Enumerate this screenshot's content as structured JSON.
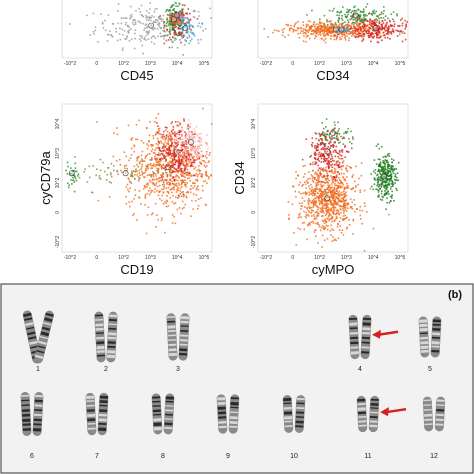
{
  "panel_b_label": "(b)",
  "flow_plots": [
    {
      "id": "cd45",
      "xlabel": "CD45",
      "ylabel": "",
      "x_ticks": [
        "-10^2",
        "0",
        "10^2",
        "10^3",
        "10^4",
        "10^5"
      ],
      "y_ticks": [],
      "populations": [
        {
          "color": "#9a9a9a",
          "cx": 3.0,
          "cy": 2.2,
          "sx": 1.0,
          "sy": 0.8,
          "n": 260
        },
        {
          "color": "#2e8b2e",
          "cx": 3.8,
          "cy": 2.6,
          "sx": 0.18,
          "sy": 0.6,
          "n": 170
        },
        {
          "color": "#d42020",
          "cx": 4.0,
          "cy": 2.4,
          "sx": 0.25,
          "sy": 0.6,
          "n": 90
        },
        {
          "color": "#2aa7d8",
          "cx": 4.2,
          "cy": 2.0,
          "sx": 0.18,
          "sy": 0.5,
          "n": 50
        },
        {
          "color": "#f26a1b",
          "cx": 3.8,
          "cy": 2.7,
          "sx": 0.12,
          "sy": 0.2,
          "n": 30
        },
        {
          "color": "#b03ab0",
          "cx": 3.9,
          "cy": 3.0,
          "sx": 0.1,
          "sy": 0.15,
          "n": 15
        }
      ]
    },
    {
      "id": "cd34-top",
      "xlabel": "CD34",
      "ylabel": "",
      "x_ticks": [
        "-10^2",
        "0",
        "10^2",
        "10^3",
        "10^4",
        "10^5"
      ],
      "y_ticks": [],
      "populations": [
        {
          "color": "#2e8b2e",
          "cx": 3.3,
          "cy": 3.0,
          "sx": 0.6,
          "sy": 0.4,
          "n": 160
        },
        {
          "color": "#f26a1b",
          "cx": 2.6,
          "cy": 1.9,
          "sx": 0.85,
          "sy": 0.3,
          "n": 520
        },
        {
          "color": "#d42020",
          "cx": 4.0,
          "cy": 2.0,
          "sx": 0.55,
          "sy": 0.45,
          "n": 220
        },
        {
          "color": "#2aa7d8",
          "cx": 2.8,
          "cy": 1.9,
          "sx": 0.12,
          "sy": 0.12,
          "n": 25
        }
      ]
    },
    {
      "id": "cd19",
      "xlabel": "CD19",
      "ylabel": "cyCD79a",
      "x_ticks": [
        "-10^2",
        "0",
        "10^2",
        "10^3",
        "10^4",
        "10^5"
      ],
      "y_ticks": [
        "-10^2",
        "0",
        "10^2",
        "10^3",
        "10^4"
      ],
      "populations": [
        {
          "color": "#f26a1b",
          "cx": 3.6,
          "cy": 2.6,
          "sx": 0.75,
          "sy": 0.7,
          "n": 750
        },
        {
          "color": "#d42020",
          "cx": 3.9,
          "cy": 3.1,
          "sx": 0.35,
          "sy": 0.45,
          "n": 260
        },
        {
          "color": "#f4b6b6",
          "cx": 4.4,
          "cy": 3.4,
          "sx": 0.22,
          "sy": 0.3,
          "n": 120
        },
        {
          "color": "#2e8b2e",
          "cx": 0.2,
          "cy": 2.4,
          "sx": 0.12,
          "sy": 0.18,
          "n": 35
        },
        {
          "color": "#8b8b3a",
          "cx": 2.1,
          "cy": 2.4,
          "sx": 0.9,
          "sy": 0.25,
          "n": 80
        }
      ]
    },
    {
      "id": "cympo",
      "xlabel": "cyMPO",
      "ylabel": "CD34",
      "x_ticks": [
        "-10^2",
        "0",
        "10^2",
        "10^3",
        "10^4",
        "10^5"
      ],
      "y_ticks": [
        "-10^2",
        "0",
        "10^2",
        "10^3",
        "10^4"
      ],
      "populations": [
        {
          "color": "#f26a1b",
          "cx": 2.3,
          "cy": 1.6,
          "sx": 0.5,
          "sy": 0.55,
          "n": 800
        },
        {
          "color": "#d42020",
          "cx": 2.3,
          "cy": 3.1,
          "sx": 0.35,
          "sy": 0.35,
          "n": 220
        },
        {
          "color": "#2e8b2e",
          "cx": 2.5,
          "cy": 3.7,
          "sx": 0.3,
          "sy": 0.2,
          "n": 60
        },
        {
          "color": "#1f7a1f",
          "cx": 4.3,
          "cy": 2.3,
          "sx": 0.2,
          "sy": 0.35,
          "n": 300
        }
      ]
    }
  ],
  "karyotype": {
    "rows": [
      [
        {
          "label": "1",
          "arrow": false
        },
        {
          "label": "2",
          "arrow": false
        },
        {
          "label": "3",
          "arrow": false
        },
        {
          "label": "4",
          "arrow": true
        },
        {
          "label": "5",
          "arrow": false
        }
      ],
      [
        {
          "label": "6",
          "arrow": false
        },
        {
          "label": "7",
          "arrow": false
        },
        {
          "label": "8",
          "arrow": false
        },
        {
          "label": "9",
          "arrow": false
        },
        {
          "label": "10",
          "arrow": false
        },
        {
          "label": "11",
          "arrow": true
        },
        {
          "label": "12",
          "arrow": false
        }
      ]
    ],
    "arrow_color": "#d42020"
  },
  "colors": {
    "orange": "#f26a1b",
    "red": "#d42020",
    "green": "#2e8b2e",
    "grey": "#9a9a9a",
    "karyotype_bg": "#f2f2f2"
  }
}
